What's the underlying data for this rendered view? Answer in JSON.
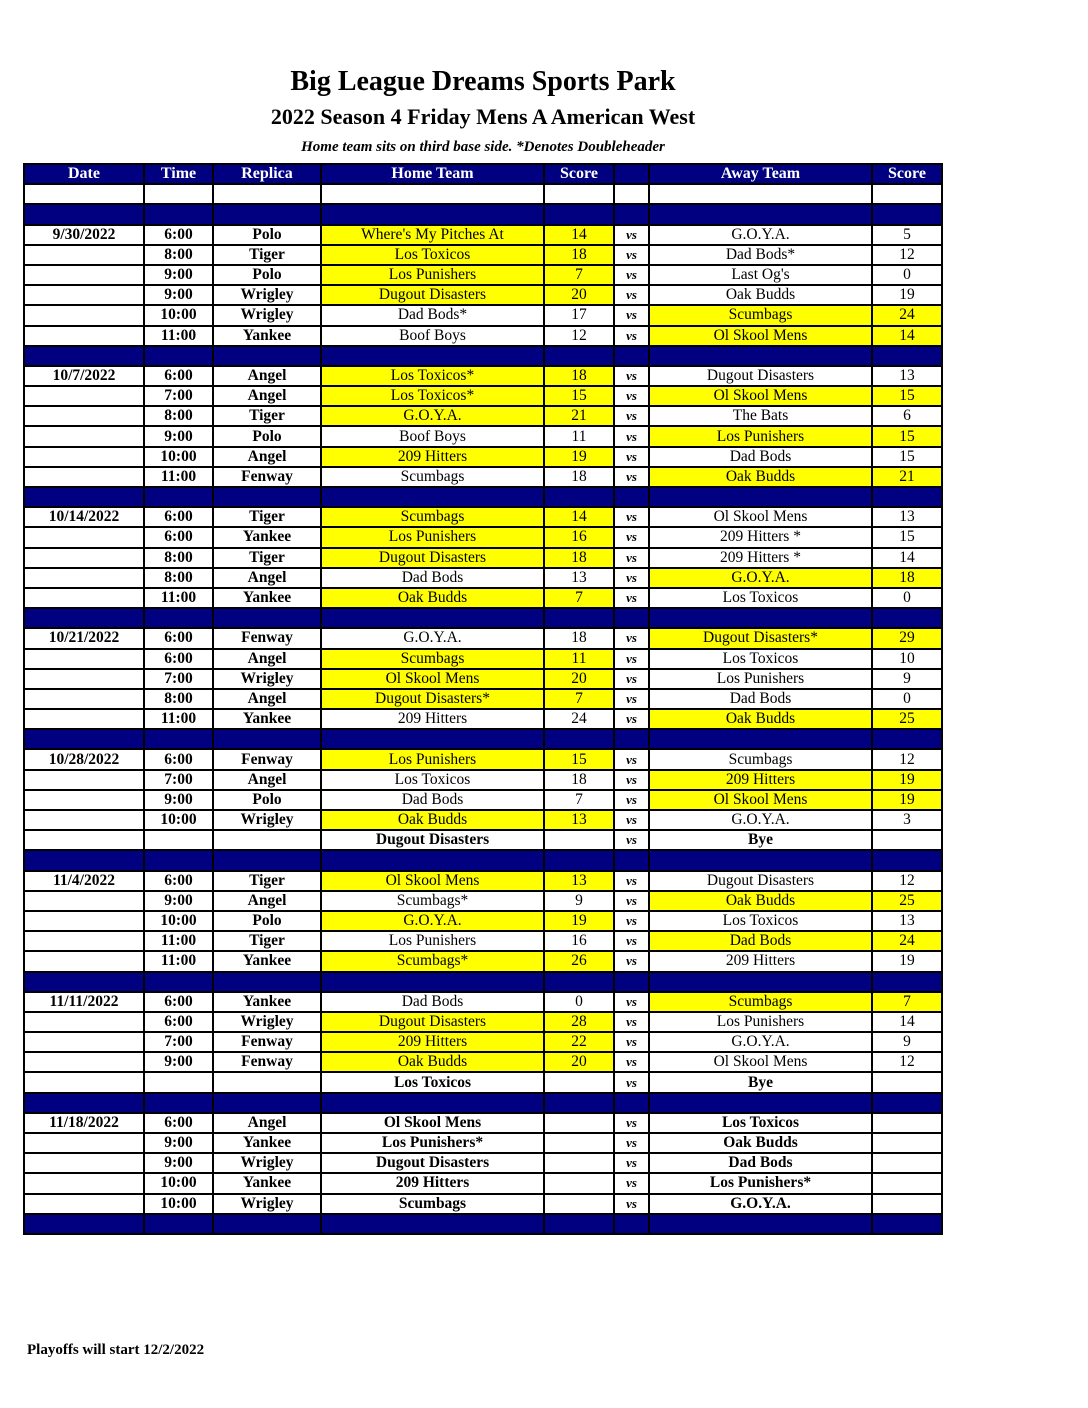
{
  "title": "Big League Dreams Sports Park",
  "subtitle": "2022 Season 4 Friday Mens A American West",
  "note": "Home team sits on third base side.  *Denotes Doubleheader",
  "columns": [
    "Date",
    "Time",
    "Replica",
    "Home Team",
    "Score",
    "",
    "Away Team",
    "Score"
  ],
  "vs_label": "vs",
  "highlight_color": "#ffff00",
  "header_color": "#000080",
  "weeks": [
    {
      "date": "9/30/2022",
      "games": [
        [
          "6:00",
          "Polo",
          "Where's My Pitches At",
          "14",
          "G.O.Y.A.",
          "5",
          "home"
        ],
        [
          "8:00",
          "Tiger",
          "Los Toxicos",
          "18",
          "Dad Bods*",
          "12",
          "home"
        ],
        [
          "9:00",
          "Polo",
          "Los Punishers",
          "7",
          "Last Og's",
          "0",
          "home"
        ],
        [
          "9:00",
          "Wrigley",
          "Dugout Disasters",
          "20",
          "Oak Budds",
          "19",
          "home"
        ],
        [
          "10:00",
          "Wrigley",
          "Dad Bods*",
          "17",
          "Scumbags",
          "24",
          "away"
        ],
        [
          "11:00",
          "Yankee",
          "Boof Boys",
          "12",
          "Ol Skool Mens",
          "14",
          "away"
        ]
      ]
    },
    {
      "date": "10/7/2022",
      "games": [
        [
          "6:00",
          "Angel",
          "Los Toxicos*",
          "18",
          "Dugout Disasters",
          "13",
          "home"
        ],
        [
          "7:00",
          "Angel",
          "Los Toxicos*",
          "15",
          "Ol Skool Mens",
          "15",
          "both"
        ],
        [
          "8:00",
          "Tiger",
          "G.O.Y.A.",
          "21",
          "The Bats",
          "6",
          "home"
        ],
        [
          "9:00",
          "Polo",
          "Boof Boys",
          "11",
          "Los Punishers",
          "15",
          "away"
        ],
        [
          "10:00",
          "Angel",
          "209 Hitters",
          "19",
          "Dad Bods",
          "15",
          "home"
        ],
        [
          "11:00",
          "Fenway",
          "Scumbags",
          "18",
          "Oak Budds",
          "21",
          "away"
        ]
      ]
    },
    {
      "date": "10/14/2022",
      "games": [
        [
          "6:00",
          "Tiger",
          "Scumbags",
          "14",
          "Ol Skool Mens",
          "13",
          "home"
        ],
        [
          "6:00",
          "Yankee",
          "Los Punishers",
          "16",
          "209 Hitters *",
          "15",
          "home"
        ],
        [
          "8:00",
          "Tiger",
          "Dugout Disasters",
          "18",
          "209 Hitters *",
          "14",
          "home"
        ],
        [
          "8:00",
          "Angel",
          "Dad Bods",
          "13",
          "G.O.Y.A.",
          "18",
          "away"
        ],
        [
          "11:00",
          "Yankee",
          "Oak Budds",
          "7",
          "Los Toxicos",
          "0",
          "home"
        ]
      ]
    },
    {
      "date": "10/21/2022",
      "games": [
        [
          "6:00",
          "Fenway",
          "G.O.Y.A.",
          "18",
          "Dugout Disasters*",
          "29",
          "away"
        ],
        [
          "6:00",
          "Angel",
          "Scumbags",
          "11",
          "Los Toxicos",
          "10",
          "home"
        ],
        [
          "7:00",
          "Wrigley",
          "Ol Skool Mens",
          "20",
          "Los Punishers",
          "9",
          "home"
        ],
        [
          "8:00",
          "Angel",
          "Dugout Disasters*",
          "7",
          "Dad Bods",
          "0",
          "home"
        ],
        [
          "11:00",
          "Yankee",
          "209 Hitters",
          "24",
          "Oak Budds",
          "25",
          "away"
        ]
      ]
    },
    {
      "date": "10/28/2022",
      "games": [
        [
          "6:00",
          "Fenway",
          "Los Punishers",
          "15",
          "Scumbags",
          "12",
          "home"
        ],
        [
          "7:00",
          "Angel",
          "Los Toxicos",
          "18",
          "209 Hitters",
          "19",
          "away"
        ],
        [
          "9:00",
          "Polo",
          "Dad Bods",
          "7",
          "Ol Skool Mens",
          "19",
          "away"
        ],
        [
          "10:00",
          "Wrigley",
          "Oak Budds",
          "13",
          "G.O.Y.A.",
          "3",
          "home"
        ],
        [
          "",
          "",
          "Dugout Disasters",
          "",
          "Bye",
          "",
          ""
        ]
      ]
    },
    {
      "date": "11/4/2022",
      "games": [
        [
          "6:00",
          "Tiger",
          "Ol Skool Mens",
          "13",
          "Dugout Disasters",
          "12",
          "home"
        ],
        [
          "9:00",
          "Angel",
          "Scumbags*",
          "9",
          "Oak Budds",
          "25",
          "away"
        ],
        [
          "10:00",
          "Polo",
          "G.O.Y.A.",
          "19",
          "Los Toxicos",
          "13",
          "home"
        ],
        [
          "11:00",
          "Tiger",
          "Los Punishers",
          "16",
          "Dad Bods",
          "24",
          "away"
        ],
        [
          "11:00",
          "Yankee",
          "Scumbags*",
          "26",
          "209 Hitters",
          "19",
          "home"
        ]
      ]
    },
    {
      "date": "11/11/2022",
      "games": [
        [
          "6:00",
          "Yankee",
          "Dad Bods",
          "0",
          "Scumbags",
          "7",
          "away"
        ],
        [
          "6:00",
          "Wrigley",
          "Dugout Disasters",
          "28",
          "Los Punishers",
          "14",
          "home"
        ],
        [
          "7:00",
          "Fenway",
          "209 Hitters",
          "22",
          "G.O.Y.A.",
          "9",
          "home"
        ],
        [
          "9:00",
          "Fenway",
          "Oak Budds",
          "20",
          "Ol Skool Mens",
          "12",
          "home"
        ],
        [
          "",
          "",
          "Los Toxicos",
          "",
          "Bye",
          "",
          ""
        ]
      ]
    },
    {
      "date": "11/18/2022",
      "games": [
        [
          "6:00",
          "Angel",
          "Ol Skool Mens",
          "",
          "Los Toxicos",
          "",
          ""
        ],
        [
          "9:00",
          "Yankee",
          "Los Punishers*",
          "",
          "Oak Budds",
          "",
          ""
        ],
        [
          "9:00",
          "Wrigley",
          "Dugout Disasters",
          "",
          "Dad Bods",
          "",
          ""
        ],
        [
          "10:00",
          "Yankee",
          "209 Hitters",
          "",
          "Los Punishers*",
          "",
          ""
        ],
        [
          "10:00",
          "Wrigley",
          "Scumbags",
          "",
          "G.O.Y.A.",
          "",
          ""
        ]
      ]
    }
  ],
  "footer": "Playoffs will start 12/2/2022"
}
